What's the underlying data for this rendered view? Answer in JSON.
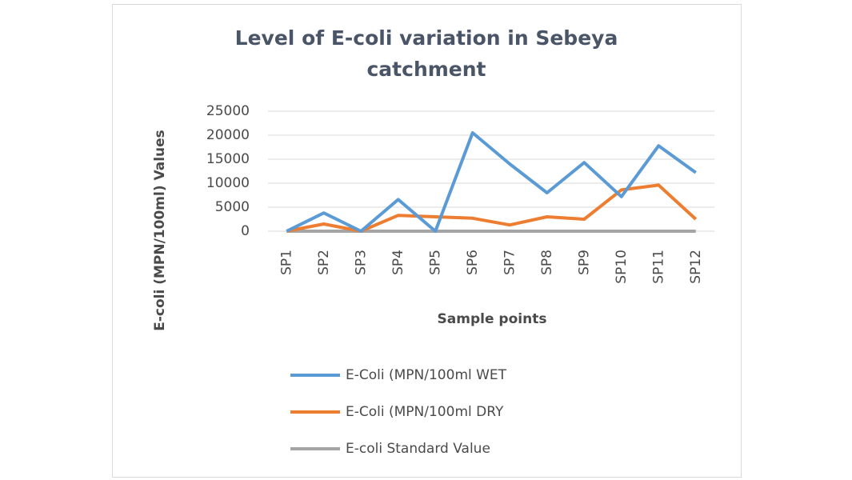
{
  "chart_data": {
    "type": "line",
    "title": "Level of E-coli variation in Sebeya catchment",
    "x_label": "Sample points",
    "y_label": "E-coli (MPN/100ml) Values",
    "categories": [
      "SP1",
      "SP2",
      "SP3",
      "SP4",
      "SP5",
      "SP6",
      "SP7",
      "SP8",
      "SP9",
      "SP10",
      "SP11",
      "SP12"
    ],
    "series": [
      {
        "name": "E-Coli (MPN/100ml WET",
        "color": "#5b9bd5",
        "values": [
          0,
          3800,
          0,
          6600,
          0,
          20500,
          14000,
          8000,
          14300,
          7200,
          17800,
          12200
        ]
      },
      {
        "name": "E-Coli (MPN/100ml DRY",
        "color": "#ed7d31",
        "values": [
          0,
          1500,
          0,
          3300,
          3000,
          2700,
          1300,
          3000,
          2500,
          8600,
          9600,
          2500
        ]
      },
      {
        "name": "E-coli Standard Value",
        "color": "#a5a5a5",
        "values": [
          0,
          0,
          0,
          0,
          0,
          0,
          0,
          0,
          0,
          0,
          0,
          0
        ]
      }
    ],
    "ylim": [
      0,
      25000
    ],
    "yticks": [
      0,
      5000,
      10000,
      15000,
      20000,
      25000
    ],
    "grid": true
  }
}
